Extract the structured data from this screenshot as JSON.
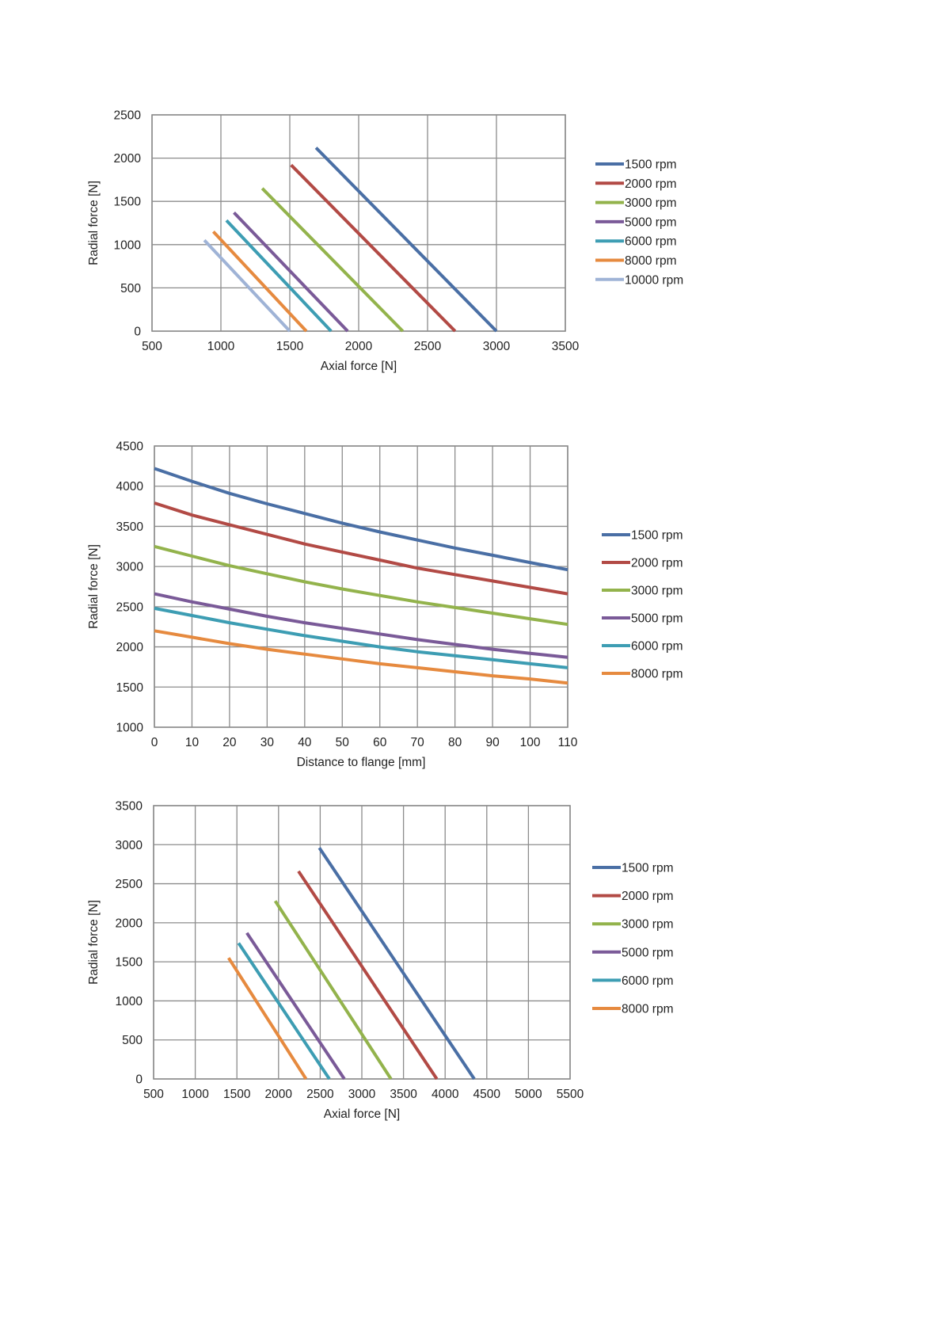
{
  "chart_data": [
    {
      "type": "line",
      "xlabel": "Axial force [N]",
      "ylabel": "Radial force [N]",
      "xlim": [
        500,
        3500
      ],
      "ylim": [
        0,
        2500
      ],
      "xticks": [
        500,
        1000,
        1500,
        2000,
        2500,
        3000,
        3500
      ],
      "yticks": [
        0,
        500,
        1000,
        1500,
        2000,
        2500
      ],
      "grid": true,
      "legend": "right",
      "series": [
        {
          "name": "1500 rpm",
          "color": "#4a6fa5",
          "points": [
            [
              1690,
              2120
            ],
            [
              3000,
              0
            ]
          ]
        },
        {
          "name": "2000 rpm",
          "color": "#b24a45",
          "points": [
            [
              1510,
              1920
            ],
            [
              2700,
              0
            ]
          ]
        },
        {
          "name": "3000 rpm",
          "color": "#93b34c",
          "points": [
            [
              1300,
              1650
            ],
            [
              2320,
              0
            ]
          ]
        },
        {
          "name": "5000 rpm",
          "color": "#7a5a98",
          "points": [
            [
              1095,
              1370
            ],
            [
              1920,
              0
            ]
          ]
        },
        {
          "name": "6000 rpm",
          "color": "#3d9db3",
          "points": [
            [
              1040,
              1280
            ],
            [
              1800,
              0
            ]
          ]
        },
        {
          "name": "8000 rpm",
          "color": "#e68a3f",
          "points": [
            [
              945,
              1150
            ],
            [
              1620,
              0
            ]
          ]
        },
        {
          "name": "10000 rpm",
          "color": "#9fb3d6",
          "points": [
            [
              880,
              1050
            ],
            [
              1500,
              0
            ]
          ]
        }
      ]
    },
    {
      "type": "line",
      "xlabel": "Distance to flange [mm]",
      "ylabel": "Radial force [N]",
      "xlim": [
        0,
        110
      ],
      "ylim": [
        1000,
        4500
      ],
      "xticks": [
        0,
        10,
        20,
        30,
        40,
        50,
        60,
        70,
        80,
        90,
        100,
        110
      ],
      "yticks": [
        1000,
        1500,
        2000,
        2500,
        3000,
        3500,
        4000,
        4500
      ],
      "grid": true,
      "legend": "right",
      "series": [
        {
          "name": "1500 rpm",
          "color": "#4a6fa5",
          "points": [
            [
              0,
              4220
            ],
            [
              10,
              4060
            ],
            [
              20,
              3910
            ],
            [
              30,
              3780
            ],
            [
              40,
              3660
            ],
            [
              50,
              3540
            ],
            [
              60,
              3430
            ],
            [
              70,
              3330
            ],
            [
              80,
              3230
            ],
            [
              90,
              3140
            ],
            [
              100,
              3050
            ],
            [
              110,
              2960
            ]
          ]
        },
        {
          "name": "2000 rpm",
          "color": "#b24a45",
          "points": [
            [
              0,
              3790
            ],
            [
              10,
              3640
            ],
            [
              20,
              3520
            ],
            [
              30,
              3400
            ],
            [
              40,
              3280
            ],
            [
              50,
              3180
            ],
            [
              60,
              3080
            ],
            [
              70,
              2980
            ],
            [
              80,
              2900
            ],
            [
              90,
              2820
            ],
            [
              100,
              2740
            ],
            [
              110,
              2660
            ]
          ]
        },
        {
          "name": "3000 rpm",
          "color": "#93b34c",
          "points": [
            [
              0,
              3250
            ],
            [
              10,
              3130
            ],
            [
              20,
              3010
            ],
            [
              30,
              2910
            ],
            [
              40,
              2810
            ],
            [
              50,
              2720
            ],
            [
              60,
              2640
            ],
            [
              70,
              2560
            ],
            [
              80,
              2490
            ],
            [
              90,
              2420
            ],
            [
              100,
              2350
            ],
            [
              110,
              2280
            ]
          ]
        },
        {
          "name": "5000 rpm",
          "color": "#7a5a98",
          "points": [
            [
              0,
              2660
            ],
            [
              10,
              2560
            ],
            [
              20,
              2470
            ],
            [
              30,
              2380
            ],
            [
              40,
              2300
            ],
            [
              50,
              2230
            ],
            [
              60,
              2160
            ],
            [
              70,
              2090
            ],
            [
              80,
              2030
            ],
            [
              90,
              1970
            ],
            [
              100,
              1920
            ],
            [
              110,
              1870
            ]
          ]
        },
        {
          "name": "6000 rpm",
          "color": "#3d9db3",
          "points": [
            [
              0,
              2480
            ],
            [
              10,
              2390
            ],
            [
              20,
              2300
            ],
            [
              30,
              2220
            ],
            [
              40,
              2140
            ],
            [
              50,
              2070
            ],
            [
              60,
              2000
            ],
            [
              70,
              1940
            ],
            [
              80,
              1890
            ],
            [
              90,
              1840
            ],
            [
              100,
              1790
            ],
            [
              110,
              1740
            ]
          ]
        },
        {
          "name": "8000 rpm",
          "color": "#e68a3f",
          "points": [
            [
              0,
              2200
            ],
            [
              10,
              2120
            ],
            [
              20,
              2040
            ],
            [
              30,
              1970
            ],
            [
              40,
              1910
            ],
            [
              50,
              1850
            ],
            [
              60,
              1790
            ],
            [
              70,
              1740
            ],
            [
              80,
              1690
            ],
            [
              90,
              1640
            ],
            [
              100,
              1600
            ],
            [
              110,
              1550
            ]
          ]
        }
      ]
    },
    {
      "type": "line",
      "xlabel": "Axial force [N]",
      "ylabel": "Radial force [N]",
      "xlim": [
        500,
        5500
      ],
      "ylim": [
        0,
        3500
      ],
      "xticks": [
        500,
        1000,
        1500,
        2000,
        2500,
        3000,
        3500,
        4000,
        4500,
        5000,
        5500
      ],
      "yticks": [
        0,
        500,
        1000,
        1500,
        2000,
        2500,
        3000,
        3500
      ],
      "grid": true,
      "legend": "right",
      "series": [
        {
          "name": "1500 rpm",
          "color": "#4a6fa5",
          "points": [
            [
              2490,
              2960
            ],
            [
              4350,
              0
            ]
          ]
        },
        {
          "name": "2000 rpm",
          "color": "#b24a45",
          "points": [
            [
              2240,
              2660
            ],
            [
              3900,
              0
            ]
          ]
        },
        {
          "name": "3000 rpm",
          "color": "#93b34c",
          "points": [
            [
              1960,
              2280
            ],
            [
              3350,
              0
            ]
          ]
        },
        {
          "name": "5000 rpm",
          "color": "#7a5a98",
          "points": [
            [
              1620,
              1870
            ],
            [
              2790,
              0
            ]
          ]
        },
        {
          "name": "6000 rpm",
          "color": "#3d9db3",
          "points": [
            [
              1520,
              1740
            ],
            [
              2610,
              0
            ]
          ]
        },
        {
          "name": "8000 rpm",
          "color": "#e68a3f",
          "points": [
            [
              1400,
              1550
            ],
            [
              2330,
              0
            ]
          ]
        }
      ]
    }
  ]
}
